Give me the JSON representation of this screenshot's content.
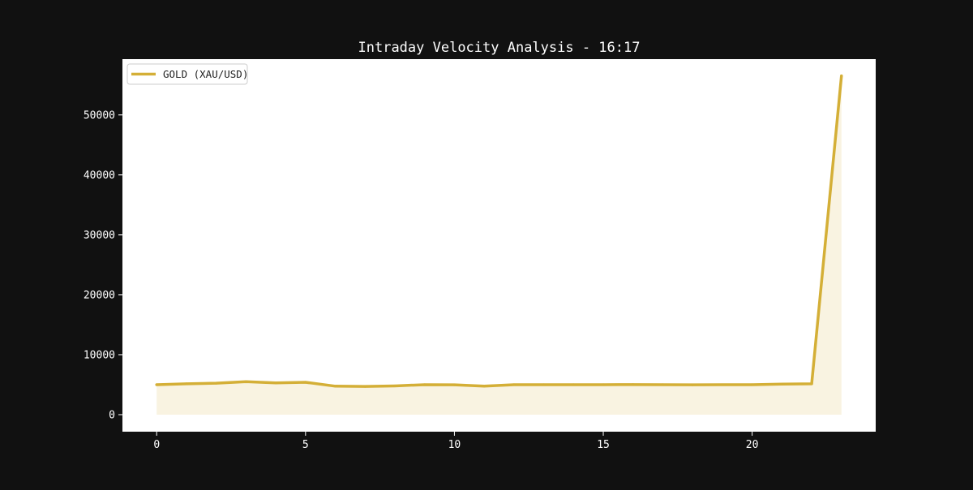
{
  "chart_data": {
    "type": "area",
    "title": "Intraday Velocity Analysis - 16:17",
    "xlabel": "",
    "ylabel": "",
    "x": [
      0,
      1,
      2,
      3,
      4,
      5,
      6,
      7,
      8,
      9,
      10,
      11,
      12,
      13,
      14,
      15,
      16,
      17,
      18,
      19,
      20,
      21,
      22,
      23
    ],
    "series": [
      {
        "name": "GOLD (XAU/USD)",
        "color": "#d4af37",
        "fill_color": "#d4af37",
        "values": [
          5000,
          5150,
          5250,
          5500,
          5300,
          5400,
          4750,
          4700,
          4800,
          5000,
          4980,
          4750,
          5000,
          5000,
          5000,
          5000,
          5020,
          5000,
          4980,
          4990,
          5000,
          5100,
          5150,
          56500
        ]
      }
    ],
    "xlim": [
      -1.15,
      24.15
    ],
    "ylim": [
      -2840,
      59300
    ],
    "xticks": [
      0,
      5,
      10,
      15,
      20
    ],
    "yticks": [
      0,
      10000,
      20000,
      30000,
      40000,
      50000
    ],
    "grid": false,
    "legend_position": "top-left",
    "colors": {
      "page_background": "#111111",
      "plot_background": "#ffffff",
      "text": "#ffffff"
    }
  }
}
